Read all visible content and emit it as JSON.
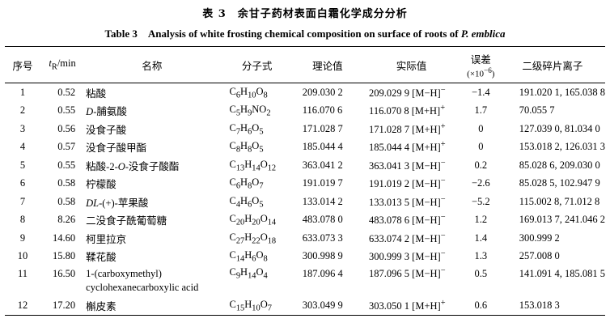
{
  "caption": {
    "cn": "表 3　余甘子药材表面白霜化学成分分析",
    "en_prefix": "Table 3　Analysis of white frosting chemical composition on surface of roots of ",
    "en_species": "P. emblica"
  },
  "headers": {
    "no": "序号",
    "tr_main": "t",
    "tr_sub": "R",
    "tr_unit": "/min",
    "name": "名称",
    "formula": "分子式",
    "theoretical": "理论值",
    "measured": "实际值",
    "error_line1": "误差",
    "error_line2_pre": "(×10",
    "error_line2_sup": "−6",
    "error_line2_post": ")",
    "fragments": "二级碎片离子"
  },
  "rows": [
    {
      "no": "1",
      "tr": "0.52",
      "name": "粘酸",
      "formula": [
        [
          "C"
        ],
        [
          "6",
          "sub"
        ],
        [
          "H"
        ],
        [
          "10",
          "sub"
        ],
        [
          "O"
        ],
        [
          "8",
          "sub"
        ]
      ],
      "theo": "209.030 2",
      "meas": "209.029 9 [M−H]",
      "ion": "−",
      "err": "−1.4",
      "frag": "191.020 1, 165.038 8"
    },
    {
      "no": "2",
      "tr": "0.55",
      "name_italic": "D",
      "name": "-脯氨酸",
      "formula": [
        [
          "C"
        ],
        [
          "5",
          "sub"
        ],
        [
          "H"
        ],
        [
          "9",
          "sub"
        ],
        [
          "NO"
        ],
        [
          "2",
          "sub"
        ]
      ],
      "theo": "116.070 6",
      "meas": "116.070 8 [M+H]",
      "ion": "+",
      "err": "1.7",
      "frag": "70.055 7"
    },
    {
      "no": "3",
      "tr": "0.56",
      "name": "没食子酸",
      "formula": [
        [
          "C"
        ],
        [
          "7",
          "sub"
        ],
        [
          "H"
        ],
        [
          "6",
          "sub"
        ],
        [
          "O"
        ],
        [
          "5",
          "sub"
        ]
      ],
      "theo": "171.028 7",
      "meas": "171.028 7 [M+H]",
      "ion": "+",
      "err": "0",
      "frag": "127.039 0, 81.034 0"
    },
    {
      "no": "4",
      "tr": "0.57",
      "name": "没食子酸甲酯",
      "formula": [
        [
          "C"
        ],
        [
          "8",
          "sub"
        ],
        [
          "H"
        ],
        [
          "8",
          "sub"
        ],
        [
          "O"
        ],
        [
          "5",
          "sub"
        ]
      ],
      "theo": "185.044 4",
      "meas": "185.044 4 [M+H]",
      "ion": "+",
      "err": "0",
      "frag": "153.018 2, 126.031 3"
    },
    {
      "no": "5",
      "tr": "0.55",
      "name_pre": "粘酸-2-",
      "name_italic": "O",
      "name": "-没食子酸酯",
      "formula": [
        [
          "C"
        ],
        [
          "13",
          "sub"
        ],
        [
          "H"
        ],
        [
          "14",
          "sub"
        ],
        [
          "O"
        ],
        [
          "12",
          "sub"
        ]
      ],
      "theo": "363.041 2",
      "meas": "363.041 3 [M−H]",
      "ion": "−",
      "err": "0.2",
      "frag": "85.028 6, 209.030 0"
    },
    {
      "no": "6",
      "tr": "0.58",
      "name": "柠檬酸",
      "formula": [
        [
          "C"
        ],
        [
          "6",
          "sub"
        ],
        [
          "H"
        ],
        [
          "8",
          "sub"
        ],
        [
          "O"
        ],
        [
          "7",
          "sub"
        ]
      ],
      "theo": "191.019 7",
      "meas": "191.019 2 [M−H]",
      "ion": "−",
      "err": "−2.6",
      "frag": "85.028 5, 102.947 9"
    },
    {
      "no": "7",
      "tr": "0.58",
      "name_italic": "DL",
      "name": "-(+)-苹果酸",
      "formula": [
        [
          "C"
        ],
        [
          "4",
          "sub"
        ],
        [
          "H"
        ],
        [
          "6",
          "sub"
        ],
        [
          "O"
        ],
        [
          "5",
          "sub"
        ]
      ],
      "theo": "133.014 2",
      "meas": "133.013 5 [M−H]",
      "ion": "−",
      "err": "−5.2",
      "frag": "115.002 8, 71.012 8"
    },
    {
      "no": "8",
      "tr": "8.26",
      "name": "二没食子酰葡萄糖",
      "formula": [
        [
          "C"
        ],
        [
          "20",
          "sub"
        ],
        [
          "H"
        ],
        [
          "20",
          "sub"
        ],
        [
          "O"
        ],
        [
          "14",
          "sub"
        ]
      ],
      "theo": "483.078 0",
      "meas": "483.078 6 [M−H]",
      "ion": "−",
      "err": "1.2",
      "frag": "169.013 7, 241.046 2"
    },
    {
      "no": "9",
      "tr": "14.60",
      "name": "柯里拉京",
      "formula": [
        [
          "C"
        ],
        [
          "27",
          "sub"
        ],
        [
          "H"
        ],
        [
          "22",
          "sub"
        ],
        [
          "O"
        ],
        [
          "18",
          "sub"
        ]
      ],
      "theo": "633.073 3",
      "meas": "633.074 2 [M−H]",
      "ion": "−",
      "err": "1.4",
      "frag": "300.999 2"
    },
    {
      "no": "10",
      "tr": "15.80",
      "name": "鞣花酸",
      "formula": [
        [
          "C"
        ],
        [
          "14",
          "sub"
        ],
        [
          "H"
        ],
        [
          "6",
          "sub"
        ],
        [
          "O"
        ],
        [
          "8",
          "sub"
        ]
      ],
      "theo": "300.998 9",
      "meas": "300.999 3 [M−H]",
      "ion": "−",
      "err": "1.3",
      "frag": "257.008 0"
    },
    {
      "no": "11",
      "tr": "16.50",
      "name": "1-(carboxymethyl)",
      "name_cont": "cyclohexanecarboxylic acid",
      "formula": [
        [
          "C"
        ],
        [
          "9",
          "sub"
        ],
        [
          "H"
        ],
        [
          "14",
          "sub"
        ],
        [
          "O"
        ],
        [
          "4",
          "sub"
        ]
      ],
      "theo": "187.096 4",
      "meas": "187.096 5 [M−H]",
      "ion": "−",
      "err": "0.5",
      "frag": "141.091 4, 185.081 5"
    },
    {
      "no": "12",
      "tr": "17.20",
      "name": "槲皮素",
      "formula": [
        [
          "C"
        ],
        [
          "15",
          "sub"
        ],
        [
          "H"
        ],
        [
          "10",
          "sub"
        ],
        [
          "O"
        ],
        [
          "7",
          "sub"
        ]
      ],
      "theo": "303.049 9",
      "meas": "303.050 1 [M+H]",
      "ion": "+",
      "err": "0.6",
      "frag": "153.018 3"
    }
  ]
}
